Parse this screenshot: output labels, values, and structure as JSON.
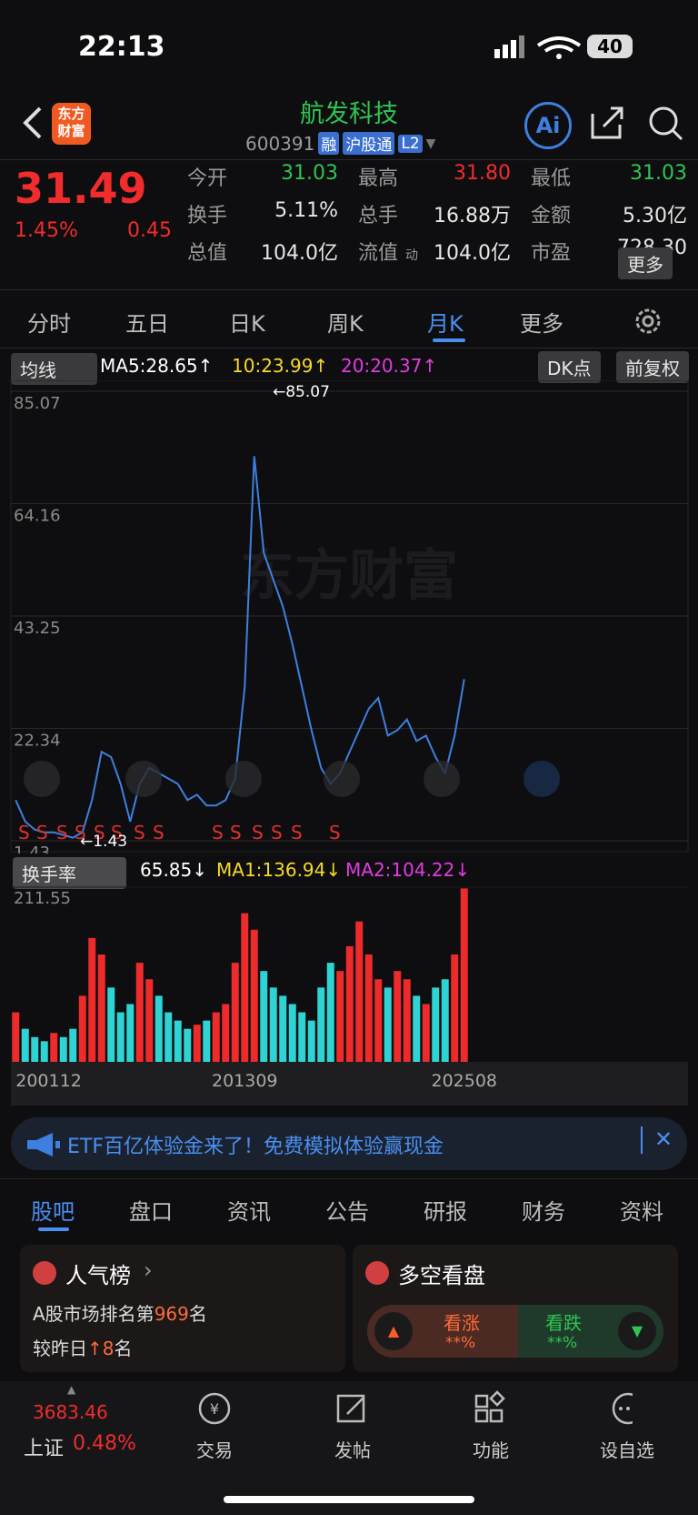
{
  "status_bar": {
    "time": "22:13",
    "battery": "40"
  },
  "header": {
    "logo": [
      "东方",
      "财富"
    ],
    "title": "航发科技",
    "code": "600391",
    "badges": [
      "融",
      "沪股通",
      "L2"
    ],
    "ai": "Ai"
  },
  "quote": {
    "price": "31.49",
    "change_pct": "1.45%",
    "change": "0.45",
    "fields": [
      [
        "今开",
        "31.03"
      ],
      [
        "最高",
        "31.80"
      ],
      [
        "最低",
        "31.03"
      ],
      [
        "换手",
        "5.11%"
      ],
      [
        "总手",
        "16.88万"
      ],
      [
        "金额",
        "5.30亿"
      ],
      [
        "总值",
        "104.0亿"
      ],
      [
        "流值",
        "104.0亿"
      ],
      [
        "市盈",
        "728.30"
      ]
    ],
    "pe_tag": "动",
    "more": "更多"
  },
  "tabs": [
    "分时",
    "五日",
    "日K",
    "周K",
    "月K",
    "更多"
  ],
  "indicator_bar": {
    "selector": "均线",
    "ma5": "MA5:28.65↑",
    "ma10": "10:23.99↑",
    "ma20": "20:20.37↑",
    "dk": "DK点",
    "adjust": "前复权"
  },
  "volume_bar": {
    "selector": "换手率",
    "value": "65.85↓",
    "ma1": "MA1:136.94↓",
    "ma2": "MA2:104.22↓"
  },
  "chart_data": [
    {
      "type": "line",
      "color": "#3d80e0",
      "ylim": [
        1.43,
        85.07
      ],
      "yticks": [
        85.07,
        64.16,
        43.25,
        22.34,
        1.43
      ],
      "grid": true,
      "values": [
        9,
        5,
        3.5,
        3,
        3,
        2.5,
        2,
        3,
        9,
        18,
        17,
        12,
        5,
        12,
        15,
        14,
        13,
        12,
        9,
        10,
        8,
        8,
        9,
        13,
        30,
        73,
        55,
        50,
        45,
        38,
        30,
        22,
        15,
        12,
        14,
        18,
        22,
        26,
        28,
        21,
        22,
        24,
        20,
        21,
        17,
        14,
        21,
        31.49
      ],
      "annotations": [
        "←85.07",
        "←1.43"
      ],
      "watermark": "东方财富",
      "signals": [
        "S",
        "S",
        "S",
        "S",
        "S",
        "S",
        "S",
        "S",
        "S",
        "S",
        "S",
        "S",
        "S",
        "S"
      ]
    },
    {
      "type": "bar",
      "ylim": [
        0,
        211.55
      ],
      "yticks": [
        211.55
      ],
      "categories": [
        "200112",
        null,
        null,
        null,
        null,
        null,
        null,
        null,
        null,
        null,
        null,
        null,
        null,
        null,
        null,
        null,
        null,
        null,
        null,
        null,
        null,
        null,
        null,
        null,
        "201309",
        null,
        null,
        null,
        null,
        null,
        null,
        null,
        null,
        null,
        null,
        null,
        null,
        null,
        null,
        null,
        null,
        null,
        null,
        null,
        null,
        null,
        null,
        "202508"
      ],
      "series": [
        {
          "color": "#ee2b2b",
          "values": [
            60,
            null,
            null,
            null,
            35,
            null,
            null,
            80,
            150,
            130,
            null,
            null,
            null,
            120,
            100,
            null,
            null,
            null,
            null,
            45,
            null,
            60,
            70,
            120,
            180,
            160,
            null,
            null,
            null,
            null,
            null,
            null,
            null,
            null,
            110,
            140,
            170,
            130,
            100,
            null,
            110,
            100,
            null,
            70,
            null,
            null,
            130,
            210
          ]
        },
        {
          "color": "#2fd3d3",
          "values": [
            null,
            40,
            30,
            25,
            null,
            30,
            40,
            null,
            null,
            null,
            90,
            60,
            70,
            null,
            null,
            80,
            60,
            50,
            40,
            null,
            50,
            null,
            null,
            null,
            null,
            null,
            110,
            90,
            80,
            70,
            60,
            50,
            90,
            120,
            null,
            null,
            null,
            null,
            null,
            90,
            null,
            null,
            80,
            null,
            90,
            100,
            null,
            null
          ]
        }
      ]
    }
  ],
  "banner": "ETF百亿体验金来了！免费模拟体验赢现金",
  "section_tabs": [
    "股吧",
    "盘口",
    "资讯",
    "公告",
    "研报",
    "财务",
    "资料"
  ],
  "cards": {
    "popularity": {
      "title": "人气榜",
      "rank_prefix": "A股市场排名第",
      "rank": "969",
      "rank_suffix": "名",
      "change_prefix": "较昨日",
      "change": "8",
      "change_suffix": "名"
    },
    "sentiment": {
      "title": "多空看盘",
      "bull": "看涨",
      "bull_pct": "**%",
      "bear": "看跌",
      "bear_pct": "**%"
    }
  },
  "nav": {
    "index_value": "3683.46",
    "index_name": "上证",
    "index_change": "0.48%",
    "items": [
      "交易",
      "发帖",
      "功能",
      "设自选"
    ]
  }
}
